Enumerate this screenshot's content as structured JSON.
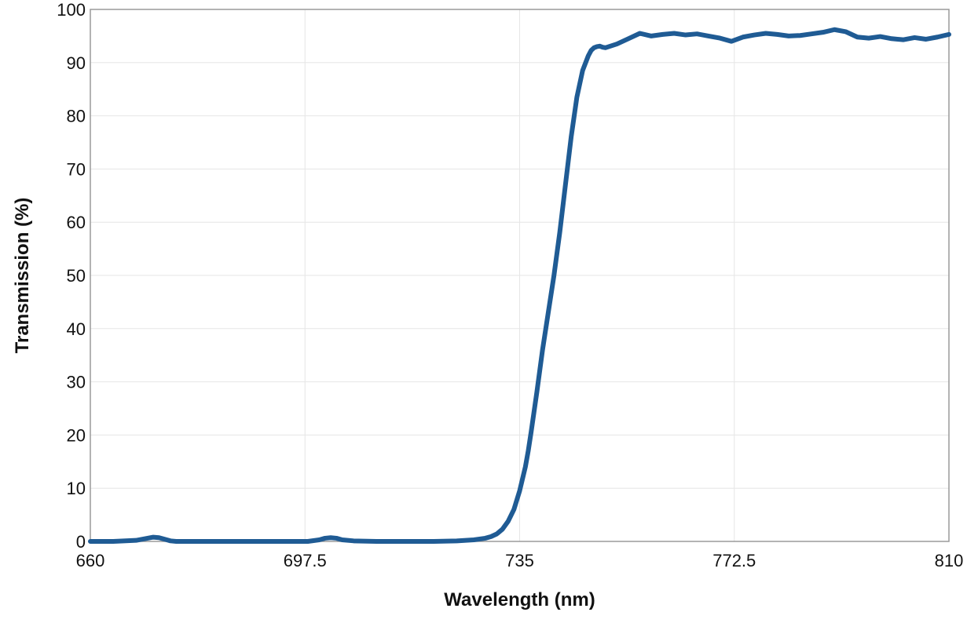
{
  "colors": {
    "series": "#1f5b94",
    "grid": "#e6e6e6",
    "frame": "#9a9a9a"
  },
  "chart_data": {
    "type": "line",
    "title": "",
    "xlabel": "Wavelength (nm)",
    "ylabel": "Transmission (%)",
    "xlim": [
      660,
      810
    ],
    "ylim": [
      0,
      100
    ],
    "xticks": [
      660,
      697.5,
      735,
      772.5,
      810
    ],
    "xtick_labels": [
      "660",
      "697.5",
      "735",
      "772.5",
      "810"
    ],
    "yticks": [
      0,
      10,
      20,
      30,
      40,
      50,
      60,
      70,
      80,
      90,
      100
    ],
    "ytick_labels": [
      "0",
      "10",
      "20",
      "30",
      "40",
      "50",
      "60",
      "70",
      "80",
      "90",
      "100"
    ],
    "grid": true,
    "legend": "none",
    "series": [
      {
        "x": [
          660,
          664,
          668,
          670,
          671,
          672,
          673,
          674,
          675,
          677,
          680,
          685,
          690,
          695,
          698,
          700,
          701,
          702,
          703,
          704,
          706,
          710,
          715,
          720,
          724,
          727,
          729,
          730,
          731,
          732,
          733,
          734,
          735,
          736,
          736.5,
          737,
          738,
          739,
          740,
          741,
          742,
          743,
          744,
          745,
          746,
          747,
          747.5,
          748,
          748.5,
          749,
          749.5,
          750,
          752,
          754,
          756,
          758,
          760,
          762,
          764,
          766,
          768,
          770,
          772,
          774,
          776,
          778,
          780,
          782,
          784,
          786,
          788,
          790,
          792,
          794,
          796,
          798,
          800,
          802,
          804,
          806,
          808,
          810
        ],
        "y": [
          0,
          0,
          0.2,
          0.6,
          0.8,
          0.7,
          0.4,
          0.1,
          0,
          0,
          0,
          0,
          0,
          0,
          0,
          0.3,
          0.6,
          0.7,
          0.6,
          0.3,
          0.1,
          0,
          0,
          0,
          0.1,
          0.3,
          0.6,
          0.9,
          1.4,
          2.3,
          3.8,
          6,
          9.5,
          14,
          17,
          20.5,
          28,
          36,
          43,
          50,
          58,
          67,
          76,
          83.5,
          88.5,
          91.3,
          92.3,
          92.8,
          93,
          93.1,
          92.9,
          92.8,
          93.5,
          94.5,
          95.5,
          95,
          95.3,
          95.5,
          95.2,
          95.4,
          95,
          94.6,
          94,
          94.8,
          95.2,
          95.5,
          95.3,
          95,
          95.1,
          95.4,
          95.7,
          96.2,
          95.8,
          94.8,
          94.6,
          94.9,
          94.5,
          94.3,
          94.7,
          94.4,
          94.8,
          95.3
        ]
      }
    ]
  }
}
